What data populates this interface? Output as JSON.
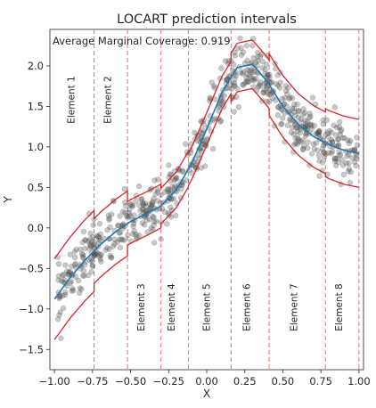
{
  "chart_data": {
    "type": "scatter",
    "title": "LOCART prediction intervals",
    "annotation": "Average Marginal Coverage: 0.919",
    "xlabel": "X",
    "ylabel": "Y",
    "xlim": [
      -1.03,
      1.03
    ],
    "ylim": [
      -1.75,
      2.45
    ],
    "xticks": [
      -1.0,
      -0.75,
      -0.5,
      -0.25,
      0.0,
      0.25,
      0.5,
      0.75,
      1.0
    ],
    "xtick_labels": [
      "−1.00",
      "−0.75",
      "−0.50",
      "−0.25",
      "0.00",
      "0.25",
      "0.50",
      "0.75",
      "1.00"
    ],
    "yticks": [
      -1.5,
      -1.0,
      -0.5,
      0.0,
      0.5,
      1.0,
      1.5,
      2.0
    ],
    "ytick_labels": [
      "−1.5",
      "−1.0",
      "−0.5",
      "0.0",
      "0.5",
      "1.0",
      "1.5",
      "2.0"
    ],
    "grid": false,
    "colors": {
      "points": "#555555",
      "fit_line": "#1f77b4",
      "interval": "#d62728",
      "partition": "#e88080"
    },
    "partitions": [
      {
        "label": "Element 1",
        "x_start": -1.0,
        "x_end": -0.74,
        "label_pos": "top"
      },
      {
        "label": "Element 2",
        "x_start": -0.74,
        "x_end": -0.52,
        "label_pos": "top"
      },
      {
        "label": "Element 3",
        "x_start": -0.52,
        "x_end": -0.3,
        "label_pos": "bottom"
      },
      {
        "label": "Element 4",
        "x_start": -0.3,
        "x_end": -0.12,
        "label_pos": "bottom"
      },
      {
        "label": "Element 5",
        "x_start": -0.12,
        "x_end": 0.16,
        "label_pos": "bottom"
      },
      {
        "label": "Element 6",
        "x_start": 0.16,
        "x_end": 0.41,
        "label_pos": "bottom"
      },
      {
        "label": "Element 7",
        "x_start": 0.41,
        "x_end": 0.78,
        "label_pos": "bottom"
      },
      {
        "label": "Element 8",
        "x_start": 0.78,
        "x_end": 1.0,
        "label_pos": "bottom"
      }
    ],
    "partition_boundaries": [
      -0.74,
      -0.52,
      -0.3,
      -0.12,
      0.16,
      0.41,
      0.78,
      1.0
    ],
    "interval_half_widths": [
      0.5,
      0.4,
      0.27,
      0.22,
      0.2,
      0.3,
      0.38,
      0.42
    ],
    "fit_line": {
      "x": [
        -1.0,
        -0.9,
        -0.8,
        -0.7,
        -0.6,
        -0.5,
        -0.4,
        -0.3,
        -0.2,
        -0.1,
        0.0,
        0.1,
        0.2,
        0.3,
        0.4,
        0.5,
        0.6,
        0.7,
        0.8,
        0.9,
        1.0
      ],
      "y": [
        -0.88,
        -0.62,
        -0.4,
        -0.21,
        -0.05,
        0.08,
        0.17,
        0.27,
        0.47,
        0.79,
        1.22,
        1.67,
        1.98,
        2.02,
        1.8,
        1.5,
        1.28,
        1.13,
        1.03,
        0.96,
        0.92
      ]
    },
    "scatter": {
      "n_points": 700,
      "x_range": [
        -0.98,
        0.99
      ],
      "y_follows": "fit_line",
      "noise_sd": 0.17
    }
  }
}
